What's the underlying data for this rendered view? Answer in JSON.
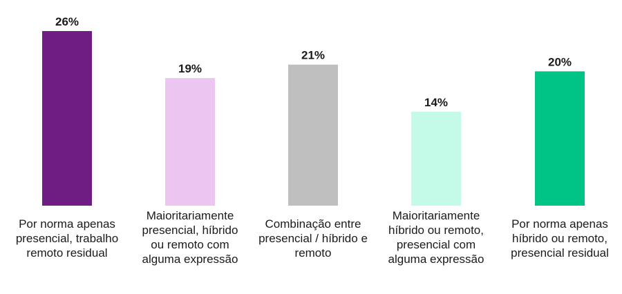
{
  "chart_data": {
    "type": "bar",
    "categories": [
      [
        "Por norma apenas",
        "presencial, trabalho",
        "remoto residual"
      ],
      [
        "Maioritariamente",
        "presencial, híbrido",
        "ou remoto com",
        "alguma expressão"
      ],
      [
        "Combinação entre",
        "presencial / híbrido e",
        "remoto"
      ],
      [
        "Maioritariamente",
        "híbrido ou remoto,",
        "presencial com",
        "alguma expressão"
      ],
      [
        "Por norma apenas",
        "híbrido ou remoto,",
        "presencial residual"
      ]
    ],
    "values": [
      26,
      19,
      21,
      14,
      20
    ],
    "value_labels": [
      "26%",
      "19%",
      "21%",
      "14%",
      "20%"
    ],
    "colors": [
      "#6f1d82",
      "#ecc6f1",
      "#bfbfbf",
      "#c3fbe8",
      "#00c386"
    ],
    "ylim": [
      0,
      26
    ],
    "grid": false,
    "legend": "none"
  }
}
